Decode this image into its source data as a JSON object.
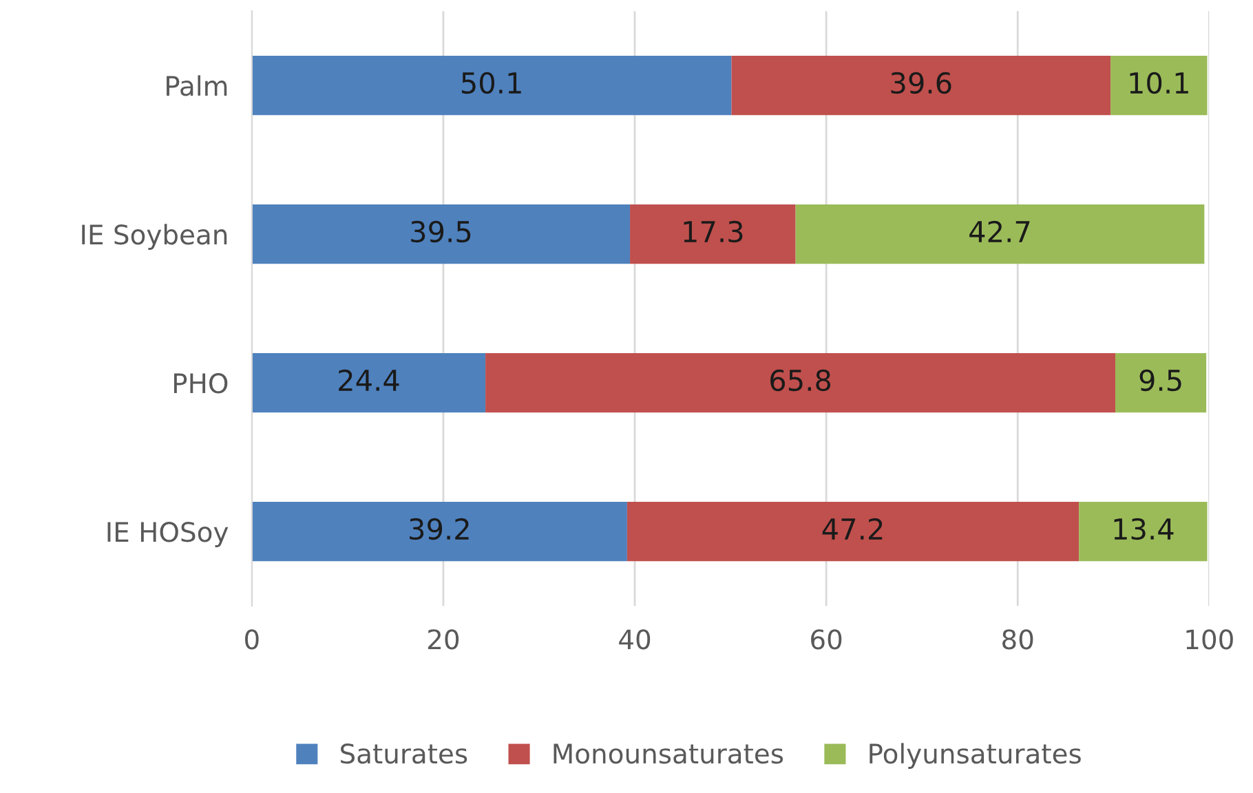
{
  "chart_data": {
    "type": "bar",
    "orientation": "horizontal",
    "stacked": true,
    "categories": [
      "Palm",
      "IE Soybean",
      "PHO",
      "IE HOSoy"
    ],
    "series": [
      {
        "name": "Saturates",
        "color": "#4f81bd",
        "values": [
          50.1,
          39.5,
          24.4,
          39.2
        ]
      },
      {
        "name": "Monounsaturates",
        "color": "#c0504d",
        "values": [
          39.6,
          17.3,
          65.8,
          47.2
        ]
      },
      {
        "name": "Polyunsaturates",
        "color": "#9bbb59",
        "values": [
          10.1,
          42.7,
          9.5,
          13.4
        ]
      }
    ],
    "xlim": [
      0,
      100
    ],
    "xticks": [
      0,
      20,
      40,
      60,
      80,
      100
    ],
    "grid": "x",
    "legend": "bottom",
    "data_labels": true
  }
}
